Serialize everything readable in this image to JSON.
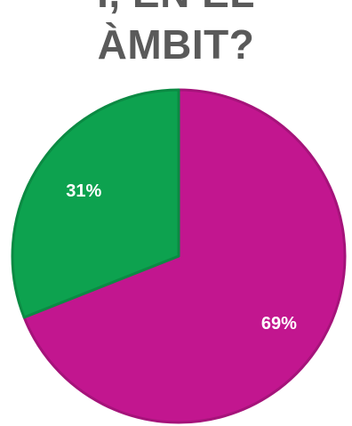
{
  "title_line_1": "Í, EN EL",
  "title_line_2": "ÀMBIT?",
  "chart_data": {
    "type": "pie",
    "title": "Í, EN EL ÀMBIT?",
    "slices": [
      {
        "value": 69,
        "label": "69%",
        "color": "#c2168f"
      },
      {
        "value": 31,
        "label": "31%",
        "color": "#0da24f"
      }
    ],
    "start": "12 o'clock",
    "direction": "clockwise",
    "legend": "none"
  }
}
